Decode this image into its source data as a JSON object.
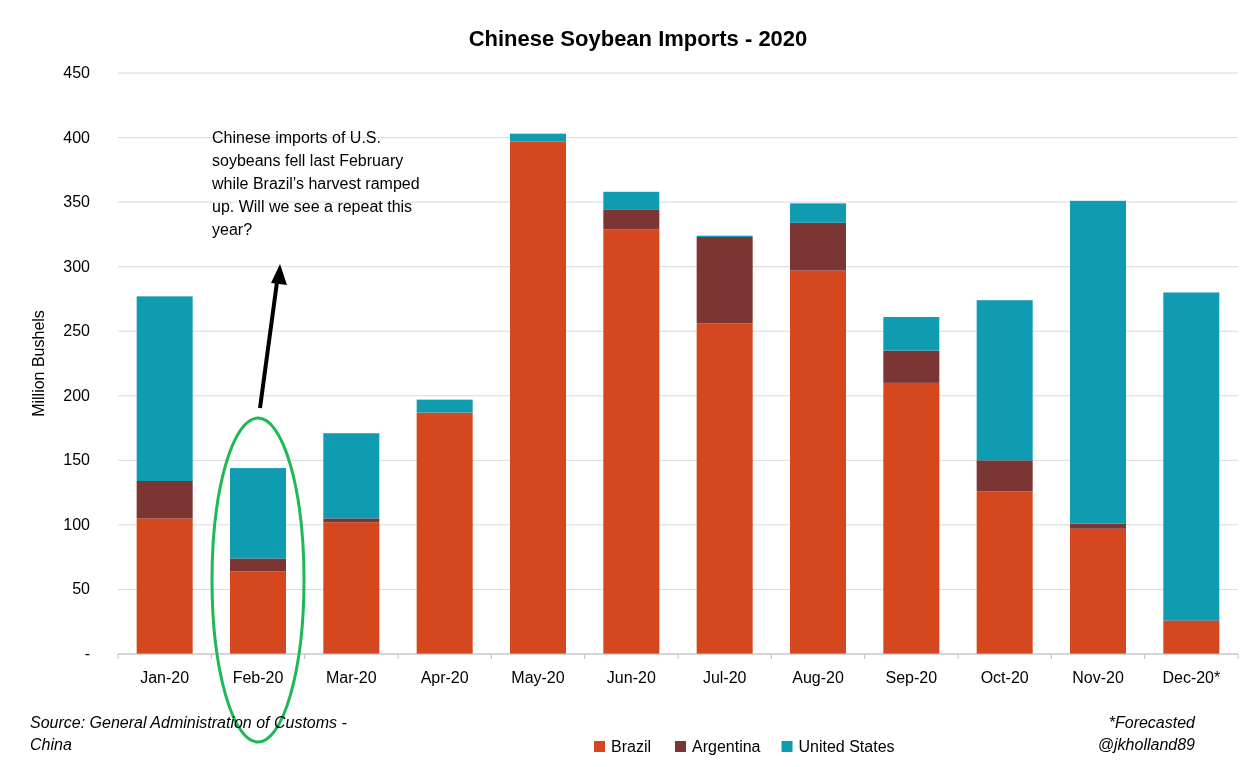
{
  "chart_data": {
    "type": "bar",
    "title": "Chinese Soybean Imports - 2020",
    "ylabel": "Million Bushels",
    "stacked": true,
    "categories": [
      "Jan-20",
      "Feb-20",
      "Mar-20",
      "Apr-20",
      "May-20",
      "Jun-20",
      "Jul-20",
      "Aug-20",
      "Sep-20",
      "Oct-20",
      "Nov-20",
      "Dec-20*"
    ],
    "series": [
      {
        "name": "Brazil",
        "color": "#d5471f",
        "values": [
          105,
          64,
          102,
          187,
          397,
          329,
          256,
          297,
          210,
          126,
          97,
          25
        ]
      },
      {
        "name": "Argentina",
        "color": "#7b3533",
        "values": [
          29,
          10,
          3,
          0,
          0,
          15,
          67,
          37,
          25,
          24,
          4,
          1
        ]
      },
      {
        "name": "United States",
        "color": "#0f9bb0",
        "values": [
          143,
          70,
          66,
          10,
          6,
          14,
          1,
          15,
          26,
          124,
          250,
          254
        ]
      }
    ],
    "ylim": [
      0,
      450
    ],
    "yticks": [
      {
        "value": 0,
        "label": "-"
      },
      50,
      100,
      150,
      200,
      250,
      300,
      350,
      400,
      450
    ],
    "grid": "y",
    "legend": "bottom",
    "annotations": [
      "Chinese imports of U.S. soybeans fell last February while Brazil's harvest ramped up. Will we see a repeat this year?",
      "Source: General Administration of Customs - China",
      "*Forecasted",
      "@jkholland89"
    ]
  }
}
